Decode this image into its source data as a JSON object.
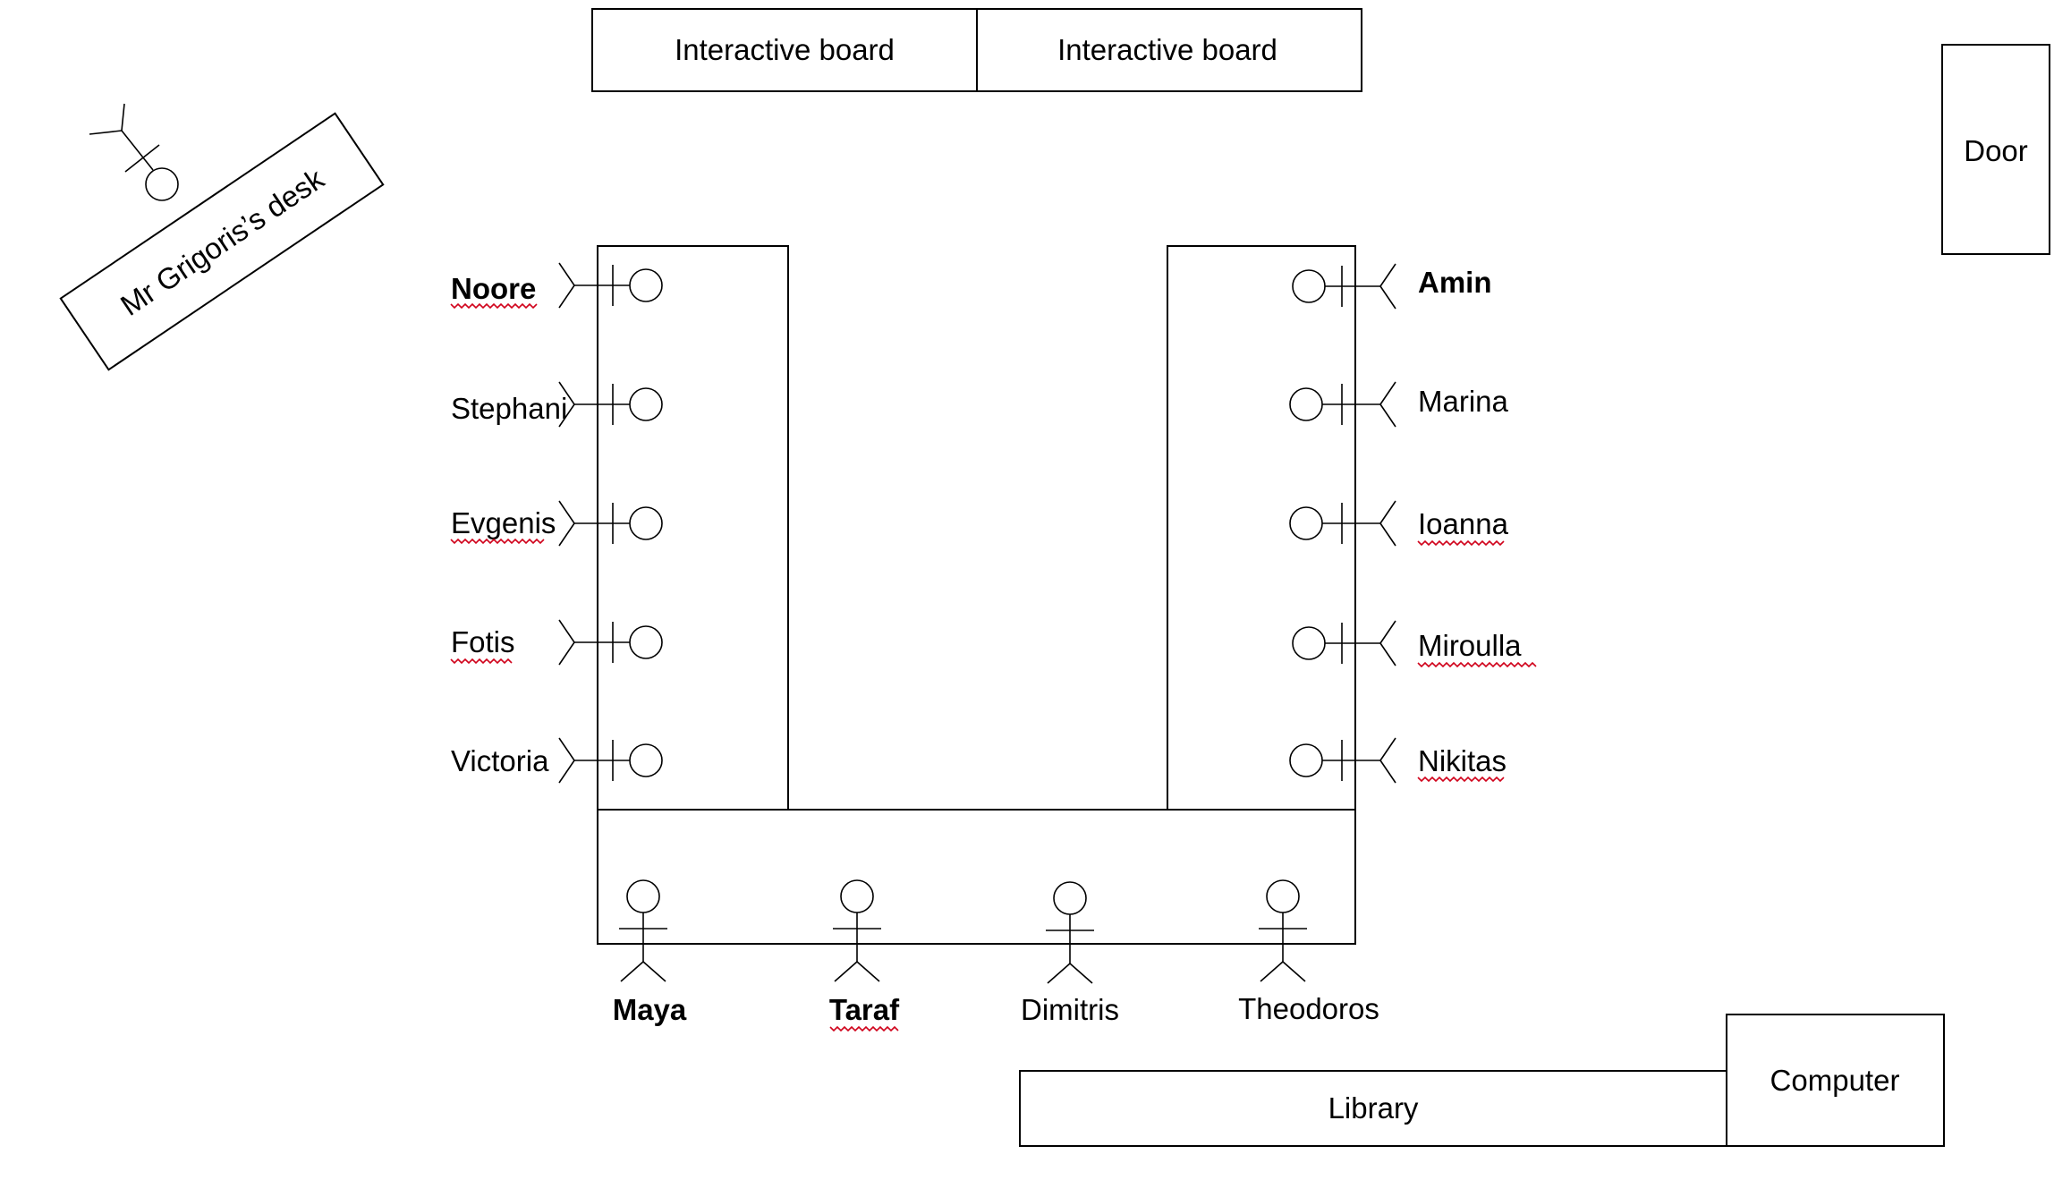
{
  "board": {
    "left_label": "Interactive board",
    "right_label": "Interactive board"
  },
  "door": {
    "label": "Door"
  },
  "teacher": {
    "desk_label": "Mr Grigoris’s desk"
  },
  "students": {
    "left": [
      "Noore",
      "Stephani",
      "Evgenis",
      "Fotis",
      "Victoria"
    ],
    "right": [
      "Amin",
      "Marina",
      "Ioanna",
      "Miroulla",
      "Nikitas"
    ],
    "bottom": [
      "Maya",
      "Taraf",
      "Dimitris",
      "Theodoros"
    ]
  },
  "library": {
    "label": "Library"
  },
  "computer": {
    "label": "Computer"
  }
}
